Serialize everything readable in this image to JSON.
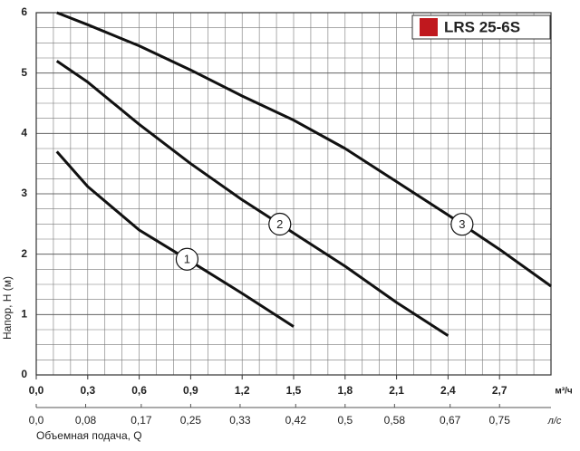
{
  "chart_data": {
    "type": "line",
    "legend_title": "LRS 25-6S",
    "legend_color": "#c0181e",
    "ylabel": "Напор, H (м)",
    "xunit": "м³/ч",
    "x2label": "Объемная подача, Q",
    "x2unit": "л/с",
    "xlim": [
      0,
      3.0
    ],
    "ylim": [
      0,
      6
    ],
    "x2lim": [
      0,
      0.8333
    ],
    "xticks": [
      {
        "value": 0,
        "label": "0,0"
      },
      {
        "value": 0.3,
        "label": "0,3"
      },
      {
        "value": 0.6,
        "label": "0,6"
      },
      {
        "value": 0.9,
        "label": "0,9"
      },
      {
        "value": 1.2,
        "label": "1,2"
      },
      {
        "value": 1.5,
        "label": "1,5"
      },
      {
        "value": 1.8,
        "label": "1,8"
      },
      {
        "value": 2.1,
        "label": "2,1"
      },
      {
        "value": 2.4,
        "label": "2,4"
      },
      {
        "value": 2.7,
        "label": "2,7"
      }
    ],
    "x2ticks": [
      {
        "value": 0,
        "label": "0,0"
      },
      {
        "value": 0.08,
        "label": "0,08"
      },
      {
        "value": 0.17,
        "label": "0,17"
      },
      {
        "value": 0.25,
        "label": "0,25"
      },
      {
        "value": 0.33,
        "label": "0,33"
      },
      {
        "value": 0.42,
        "label": "0,42"
      },
      {
        "value": 0.5,
        "label": "0,5"
      },
      {
        "value": 0.58,
        "label": "0,58"
      },
      {
        "value": 0.67,
        "label": "0,67"
      },
      {
        "value": 0.75,
        "label": "0,75"
      }
    ],
    "yticks": [
      0,
      1,
      2,
      3,
      4,
      5,
      6
    ],
    "grid": true,
    "series": [
      {
        "name": "1",
        "color": "#111111",
        "x": [
          0.12,
          0.3,
          0.6,
          0.9,
          1.2,
          1.5
        ],
        "values": [
          3.7,
          3.12,
          2.4,
          1.88,
          1.35,
          0.8
        ]
      },
      {
        "name": "2",
        "color": "#111111",
        "x": [
          0.12,
          0.3,
          0.6,
          0.9,
          1.2,
          1.5,
          1.8,
          2.1,
          2.4
        ],
        "values": [
          5.2,
          4.85,
          4.15,
          3.5,
          2.9,
          2.35,
          1.8,
          1.2,
          0.65
        ]
      },
      {
        "name": "3",
        "color": "#111111",
        "x": [
          0.12,
          0.3,
          0.6,
          0.9,
          1.2,
          1.5,
          1.8,
          2.1,
          2.4,
          2.7,
          3.0
        ],
        "values": [
          6.0,
          5.8,
          5.45,
          5.05,
          4.62,
          4.22,
          3.75,
          3.2,
          2.65,
          2.08,
          1.47
        ]
      }
    ]
  }
}
